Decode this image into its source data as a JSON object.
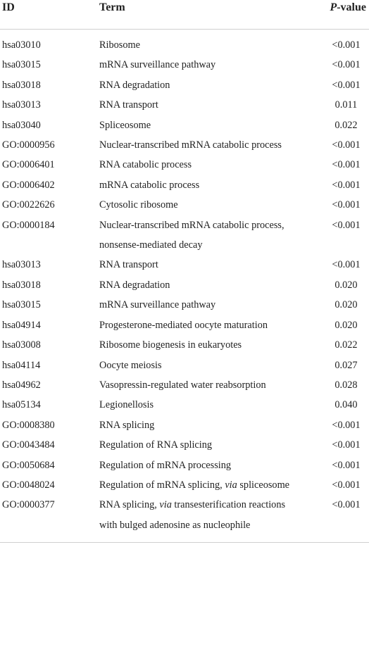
{
  "table": {
    "header": {
      "id": "ID",
      "term": "Term",
      "p": [
        {
          "text": "P",
          "italic": true
        },
        {
          "text": "-value"
        }
      ]
    },
    "rows": [
      {
        "id": "hsa03010",
        "term": "Ribosome",
        "p": "<0.001"
      },
      {
        "id": "hsa03015",
        "term": "mRNA surveillance pathway",
        "p": "<0.001"
      },
      {
        "id": "hsa03018",
        "term": "RNA degradation",
        "p": "<0.001"
      },
      {
        "id": "hsa03013",
        "term": "RNA transport",
        "p": "0.011"
      },
      {
        "id": "hsa03040",
        "term": "Spliceosome",
        "p": "0.022"
      },
      {
        "id": "GO:0000956",
        "term": "Nuclear-transcribed mRNA catabolic process",
        "p": "<0.001"
      },
      {
        "id": "GO:0006401",
        "term": "RNA catabolic process",
        "p": "<0.001"
      },
      {
        "id": "GO:0006402",
        "term": "mRNA catabolic process",
        "p": "<0.001"
      },
      {
        "id": "GO:0022626",
        "term": "Cytosolic ribosome",
        "p": "<0.001"
      },
      {
        "id": "GO:0000184",
        "term": "Nuclear-transcribed mRNA catabolic process, nonsense-mediated decay",
        "p": "<0.001"
      },
      {
        "id": "hsa03013",
        "term": "RNA transport",
        "p": "<0.001"
      },
      {
        "id": "hsa03018",
        "term": "RNA degradation",
        "p": "0.020"
      },
      {
        "id": "hsa03015",
        "term": "mRNA surveillance pathway",
        "p": "0.020"
      },
      {
        "id": "hsa04914",
        "term": "Progesterone-mediated oocyte maturation",
        "p": "0.020"
      },
      {
        "id": "hsa03008",
        "term": "Ribosome biogenesis in eukaryotes",
        "p": "0.022"
      },
      {
        "id": "hsa04114",
        "term": "Oocyte meiosis",
        "p": "0.027"
      },
      {
        "id": "hsa04962",
        "term": "Vasopressin-regulated water reabsorption",
        "p": "0.028"
      },
      {
        "id": "hsa05134",
        "term": "Legionellosis",
        "p": "0.040"
      },
      {
        "id": "GO:0008380",
        "term": "RNA splicing",
        "p": "<0.001"
      },
      {
        "id": "GO:0043484",
        "term": "Regulation of RNA splicing",
        "p": "<0.001"
      },
      {
        "id": "GO:0050684",
        "term": "Regulation of mRNA processing",
        "p": "<0.001"
      },
      {
        "id": "GO:0048024",
        "term": [
          {
            "text": "Regulation of mRNA splicing, "
          },
          {
            "text": "via",
            "italic": true
          },
          {
            "text": " spliceosome"
          }
        ],
        "p": "<0.001"
      },
      {
        "id": "GO:0000377",
        "term": [
          {
            "text": "RNA splicing, "
          },
          {
            "text": "via",
            "italic": true
          },
          {
            "text": " transesterification reactions with bulged adenosine as nucleophile"
          }
        ],
        "p": "<0.001"
      }
    ]
  }
}
